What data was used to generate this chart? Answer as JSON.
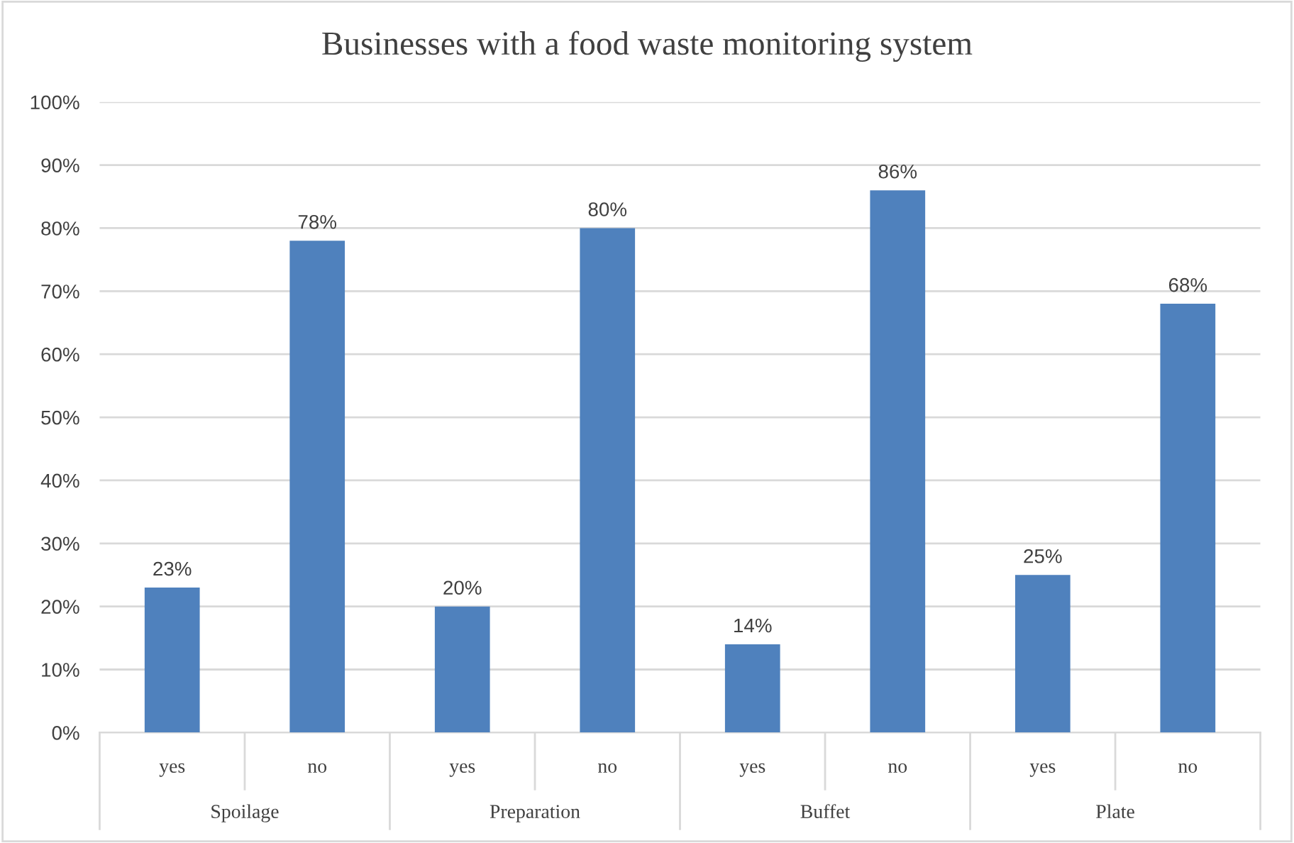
{
  "chart_data": {
    "type": "bar",
    "title": "Businesses with a food waste monitoring system",
    "categories": [
      "yes",
      "no",
      "yes",
      "no",
      "yes",
      "no",
      "yes",
      "no"
    ],
    "values": [
      23,
      78,
      20,
      80,
      14,
      86,
      25,
      68
    ],
    "color": "#4f81bd",
    "value_labels": [
      "23%",
      "78%",
      "20%",
      "80%",
      "14%",
      "86%",
      "25%",
      "68%"
    ],
    "annotations": [
      "Spoilage",
      "Preparation",
      "Buffet",
      "Plate"
    ],
    "ylim": [
      0,
      100
    ],
    "yticks": [
      {
        "value": 0,
        "label": "0%"
      },
      {
        "value": 10,
        "label": "10%"
      },
      {
        "value": 20,
        "label": "20%"
      },
      {
        "value": 30,
        "label": "30%"
      },
      {
        "value": 40,
        "label": "40%"
      },
      {
        "value": 50,
        "label": "50%"
      },
      {
        "value": 60,
        "label": "60%"
      },
      {
        "value": 70,
        "label": "70%"
      },
      {
        "value": 80,
        "label": "80%"
      },
      {
        "value": 90,
        "label": "90%"
      },
      {
        "value": 100,
        "label": "100%"
      }
    ],
    "grid": "y"
  }
}
